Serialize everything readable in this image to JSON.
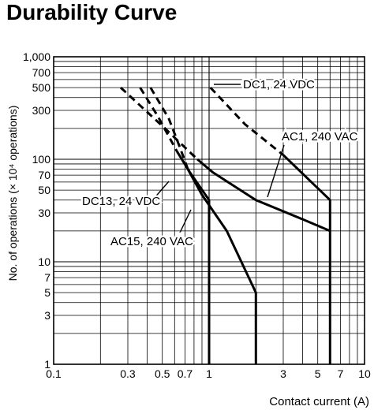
{
  "chart_data": {
    "type": "line",
    "title": "Durability Curve",
    "xlabel": "Contact current (A)",
    "ylabel": "No. of operations (× 10⁴ operations)",
    "x_scale": "log",
    "y_scale": "log",
    "xlim": [
      0.1,
      10
    ],
    "ylim": [
      1,
      1000
    ],
    "grid": true,
    "x_ticks": [
      {
        "value": 0.1,
        "label": "0.1"
      },
      {
        "value": 0.3,
        "label": "0.3"
      },
      {
        "value": 0.5,
        "label": "0.5"
      },
      {
        "value": 0.7,
        "label": "0.7"
      },
      {
        "value": 1,
        "label": "1"
      },
      {
        "value": 3,
        "label": "3"
      },
      {
        "value": 5,
        "label": "5"
      },
      {
        "value": 7,
        "label": "7"
      },
      {
        "value": 10,
        "label": "10"
      }
    ],
    "y_ticks": [
      {
        "value": 1,
        "label": "1"
      },
      {
        "value": 3,
        "label": "3"
      },
      {
        "value": 5,
        "label": "5"
      },
      {
        "value": 7,
        "label": "7"
      },
      {
        "value": 10,
        "label": "10"
      },
      {
        "value": 30,
        "label": "30"
      },
      {
        "value": 50,
        "label": "50"
      },
      {
        "value": 70,
        "label": "70"
      },
      {
        "value": 100,
        "label": "100"
      },
      {
        "value": 300,
        "label": "300"
      },
      {
        "value": 500,
        "label": "500"
      },
      {
        "value": 700,
        "label": "700"
      },
      {
        "value": 1000,
        "label": "1,000"
      }
    ],
    "series": [
      {
        "name": "DC1, 24 VDC",
        "dashed": [
          [
            1.02,
            500
          ],
          [
            1.7,
            220
          ],
          [
            3.0,
            110
          ]
        ],
        "solid": [
          [
            3.0,
            110
          ],
          [
            6.0,
            40
          ],
          [
            6.0,
            1
          ]
        ]
      },
      {
        "name": "AC1, 240 VAC",
        "dashed": [
          [
            0.27,
            500
          ],
          [
            0.52,
            200
          ],
          [
            0.84,
            100
          ]
        ],
        "solid": [
          [
            0.84,
            100
          ],
          [
            1.05,
            75
          ],
          [
            2.0,
            40
          ],
          [
            4.0,
            26
          ],
          [
            6.0,
            20
          ]
        ]
      },
      {
        "name": "DC13, 24 VDC",
        "dashed": [
          [
            0.36,
            500
          ],
          [
            0.47,
            260
          ],
          [
            0.62,
            120
          ]
        ],
        "solid": [
          [
            0.62,
            120
          ],
          [
            0.75,
            75
          ],
          [
            1.0,
            40
          ],
          [
            1.0,
            1
          ]
        ]
      },
      {
        "name": "AC15, 240 VAC",
        "dashed": [
          [
            0.42,
            500
          ],
          [
            0.55,
            250
          ],
          [
            0.65,
            130
          ],
          [
            0.73,
            80
          ]
        ],
        "solid": [
          [
            0.73,
            80
          ],
          [
            0.9,
            45
          ],
          [
            1.3,
            20
          ],
          [
            2.0,
            5
          ],
          [
            2.0,
            1
          ]
        ]
      }
    ],
    "annotations": [
      {
        "text": "DC1, 24 VDC",
        "series": "DC1, 24 VDC"
      },
      {
        "text": "AC1, 240 VAC",
        "series": "AC1, 240 VAC"
      },
      {
        "text": "DC13, 24 VDC",
        "series": "DC13, 24 VDC"
      },
      {
        "text": "AC15, 240 VAC",
        "series": "AC15, 240 VAC"
      }
    ]
  }
}
